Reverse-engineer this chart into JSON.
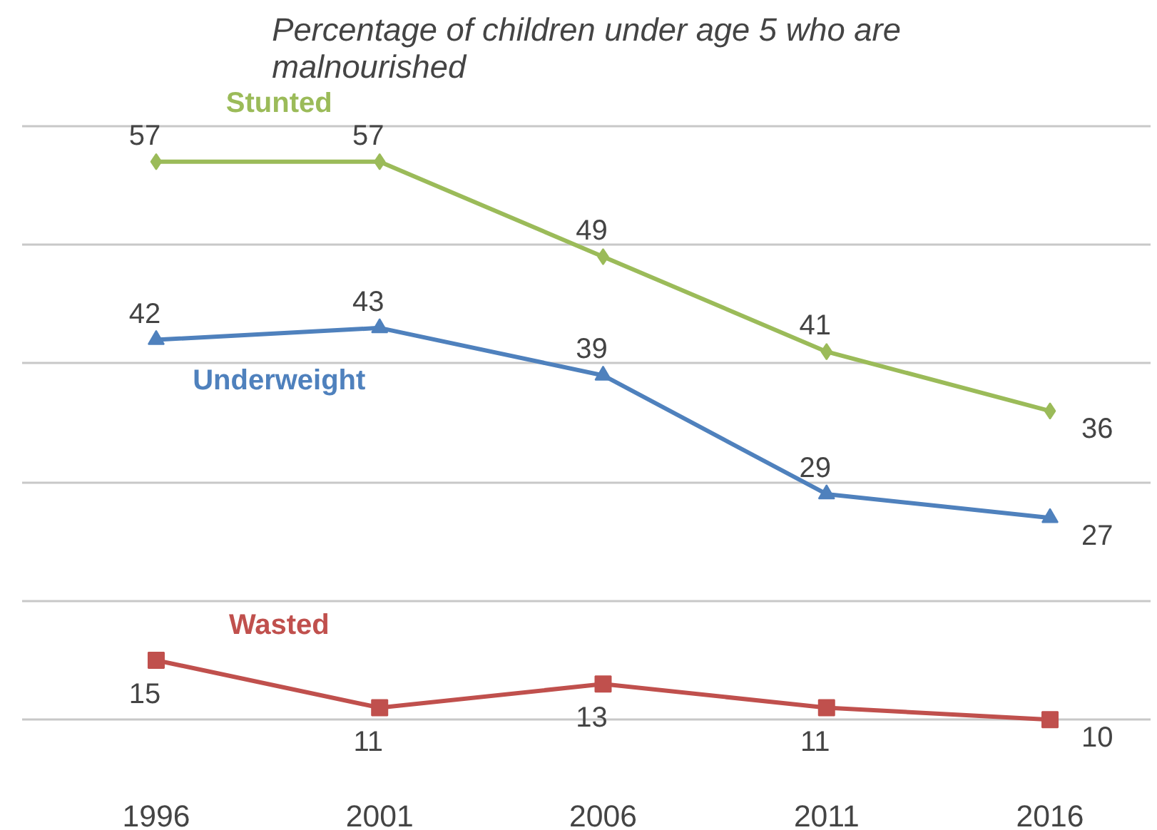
{
  "chart_data": {
    "type": "line",
    "title": "Percentage of children under age 5 who are malnourished",
    "categories": [
      "1996",
      "2001",
      "2006",
      "2011",
      "2016"
    ],
    "series": [
      {
        "name": "Stunted",
        "color": "#9bbb59",
        "marker": "diamond",
        "values": [
          57,
          57,
          49,
          41,
          36
        ]
      },
      {
        "name": "Underweight",
        "color": "#4f81bd",
        "marker": "triangle",
        "values": [
          42,
          43,
          39,
          29,
          27
        ]
      },
      {
        "name": "Wasted",
        "color": "#c0504d",
        "marker": "square",
        "values": [
          15,
          11,
          13,
          11,
          10
        ]
      }
    ],
    "tick_labels": "x",
    "grid": "y",
    "data_labels": true
  }
}
